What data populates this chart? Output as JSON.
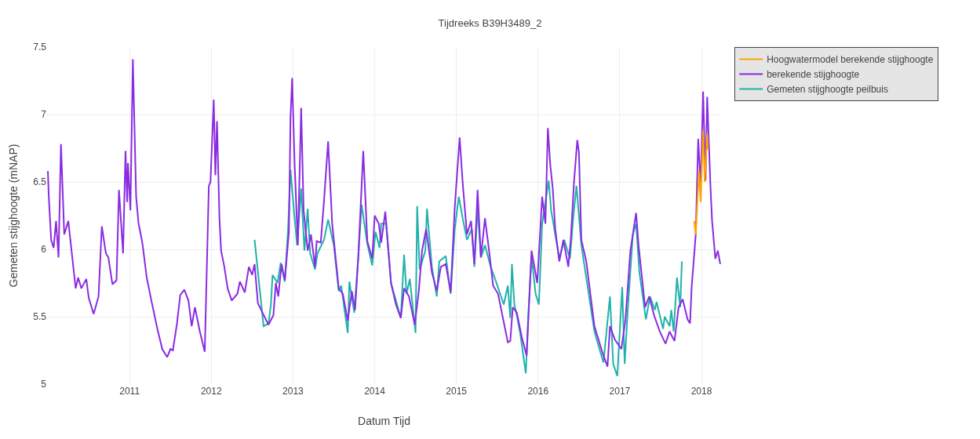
{
  "chart_data": {
    "type": "line",
    "title": "Tijdreeks B39H3489_2",
    "xlabel": "Datum Tijd",
    "ylabel": "Gemeten stijghoogte (mNAP)",
    "xlim": [
      2009.99,
      2018.24
    ],
    "xticks": [
      2011,
      2012,
      2013,
      2014,
      2015,
      2016,
      2017,
      2018
    ],
    "ylim": [
      5,
      7.5
    ],
    "yticks": [
      5,
      5.5,
      6,
      6.5,
      7,
      7.5
    ],
    "grid": true,
    "legend": "top right",
    "marker": "none",
    "line_style": "solid",
    "series": [
      {
        "name": "Hoogwatermodel berekende stijghoogte",
        "color": "#ffa500",
        "x": [
          2017.91,
          2017.93,
          2017.97,
          2017.99,
          2018.02,
          2018.04,
          2018.07,
          2018.08
        ],
        "values": [
          6.21,
          6.11,
          6.58,
          6.35,
          6.88,
          6.5,
          6.86,
          6.74
        ]
      },
      {
        "name": "berekende stijghoogte",
        "color": "#8a2be2",
        "x": [
          2010.0,
          2010.01,
          2010.04,
          2010.07,
          2010.1,
          2010.13,
          2010.16,
          2010.2,
          2010.25,
          2010.34,
          2010.37,
          2010.41,
          2010.47,
          2010.5,
          2010.56,
          2010.62,
          2010.66,
          2010.71,
          2010.74,
          2010.79,
          2010.84,
          2010.87,
          2010.92,
          2010.95,
          2010.97,
          2010.98,
          2011.01,
          2011.04,
          2011.08,
          2011.11,
          2011.14,
          2011.16,
          2011.21,
          2011.27,
          2011.34,
          2011.4,
          2011.46,
          2011.5,
          2011.53,
          2011.58,
          2011.62,
          2011.67,
          2011.72,
          2011.76,
          2011.8,
          2011.86,
          2011.92,
          2011.97,
          2011.99,
          2012.03,
          2012.05,
          2012.07,
          2012.1,
          2012.12,
          2012.16,
          2012.2,
          2012.25,
          2012.32,
          2012.35,
          2012.41,
          2012.46,
          2012.5,
          2012.53,
          2012.57,
          2012.7,
          2012.76,
          2012.79,
          2012.82,
          2012.86,
          2012.9,
          2012.95,
          2012.97,
          2012.99,
          2013.02,
          2013.06,
          2013.1,
          2013.13,
          2013.18,
          2013.22,
          2013.27,
          2013.29,
          2013.34,
          2013.38,
          2013.43,
          2013.48,
          2013.56,
          2013.61,
          2013.67,
          2013.72,
          2013.76,
          2013.8,
          2013.86,
          2013.91,
          2013.97,
          2014.0,
          2014.05,
          2014.08,
          2014.13,
          2014.2,
          2014.26,
          2014.32,
          2014.36,
          2014.42,
          2014.49,
          2014.54,
          2014.58,
          2014.63,
          2014.7,
          2014.76,
          2014.81,
          2014.87,
          2014.93,
          2014.98,
          2015.04,
          2015.08,
          2015.13,
          2015.18,
          2015.22,
          2015.26,
          2015.3,
          2015.35,
          2015.4,
          2015.45,
          2015.51,
          2015.63,
          2015.66,
          2015.69,
          2015.74,
          2015.8,
          2015.86,
          2015.92,
          2015.99,
          2016.05,
          2016.09,
          2016.12,
          2016.15,
          2016.18,
          2016.21,
          2016.26,
          2016.31,
          2016.37,
          2016.4,
          2016.44,
          2016.48,
          2016.5,
          2016.53,
          2016.59,
          2016.69,
          2016.79,
          2016.85,
          2016.88,
          2016.94,
          2017.02,
          2017.07,
          2017.13,
          2017.2,
          2017.23,
          2017.31,
          2017.36,
          2017.42,
          2017.49,
          2017.56,
          2017.61,
          2017.67,
          2017.72,
          2017.77,
          2017.83,
          2017.86,
          2017.88,
          2017.93,
          2017.96,
          2017.99,
          2018.02,
          2018.05,
          2018.07,
          2018.11,
          2018.13,
          2018.17,
          2018.2,
          2018.23
        ],
        "values": [
          6.58,
          6.4,
          6.07,
          6.01,
          6.21,
          5.94,
          6.78,
          6.11,
          6.21,
          5.71,
          5.79,
          5.71,
          5.78,
          5.64,
          5.52,
          5.65,
          6.17,
          5.97,
          5.94,
          5.74,
          5.77,
          6.44,
          5.97,
          6.73,
          6.35,
          6.64,
          6.29,
          7.41,
          6.39,
          6.19,
          6.1,
          6.03,
          5.79,
          5.61,
          5.41,
          5.26,
          5.2,
          5.26,
          5.25,
          5.45,
          5.66,
          5.7,
          5.62,
          5.43,
          5.57,
          5.39,
          5.24,
          6.47,
          6.5,
          7.11,
          6.55,
          6.95,
          6.23,
          5.99,
          5.87,
          5.71,
          5.62,
          5.67,
          5.76,
          5.68,
          5.87,
          5.81,
          5.89,
          5.6,
          5.44,
          5.51,
          5.75,
          5.65,
          5.89,
          5.77,
          6.13,
          6.98,
          7.27,
          6.63,
          6.03,
          7.05,
          6.29,
          5.99,
          6.11,
          5.87,
          6.06,
          6.05,
          6.36,
          6.8,
          6.19,
          5.71,
          5.67,
          5.47,
          5.69,
          5.55,
          5.95,
          6.73,
          6.06,
          5.93,
          6.25,
          6.19,
          6.05,
          6.28,
          5.75,
          5.59,
          5.49,
          5.71,
          5.65,
          5.44,
          5.69,
          5.99,
          6.15,
          5.83,
          5.69,
          5.87,
          5.89,
          5.68,
          6.31,
          6.83,
          6.47,
          6.11,
          6.21,
          5.89,
          6.44,
          5.94,
          6.23,
          5.99,
          5.73,
          5.67,
          5.31,
          5.32,
          5.57,
          5.53,
          5.35,
          5.21,
          5.99,
          5.75,
          6.39,
          6.19,
          6.9,
          6.62,
          6.45,
          6.15,
          5.91,
          6.07,
          5.87,
          6.07,
          6.5,
          6.81,
          6.72,
          6.07,
          5.91,
          5.43,
          5.23,
          5.13,
          5.43,
          5.33,
          5.26,
          5.48,
          5.99,
          6.27,
          6.03,
          5.57,
          5.65,
          5.51,
          5.39,
          5.3,
          5.39,
          5.32,
          5.57,
          5.63,
          5.48,
          5.45,
          5.72,
          6.11,
          6.82,
          6.47,
          7.17,
          6.51,
          7.13,
          6.47,
          6.21,
          5.93,
          5.99,
          5.89
        ]
      },
      {
        "name": "Gemeten stijghoogte peilbuis",
        "color": "#20b2aa",
        "x": [
          2012.53,
          2012.64,
          2012.7,
          2012.73,
          2012.75,
          2012.81,
          2012.85,
          2012.9,
          2012.94,
          2012.97,
          2012.99,
          2013.05,
          2013.1,
          2013.14,
          2013.18,
          2013.21,
          2013.27,
          2013.3,
          2013.38,
          2013.43,
          2013.5,
          2013.56,
          2013.59,
          2013.67,
          2013.69,
          2013.75,
          2013.8,
          2013.84,
          2013.91,
          2013.97,
          2014.01,
          2014.06,
          2014.08,
          2014.14,
          2014.2,
          2014.32,
          2014.36,
          2014.39,
          2014.43,
          2014.5,
          2014.52,
          2014.55,
          2014.62,
          2014.64,
          2014.7,
          2014.76,
          2014.79,
          2014.87,
          2014.93,
          2014.98,
          2015.03,
          2015.08,
          2015.13,
          2015.19,
          2015.22,
          2015.26,
          2015.3,
          2015.35,
          2015.42,
          2015.48,
          2015.58,
          2015.63,
          2015.66,
          2015.68,
          2015.71,
          2015.74,
          2015.78,
          2015.85,
          2015.88,
          2015.92,
          2015.97,
          2016.01,
          2016.05,
          2016.13,
          2016.16,
          2016.26,
          2016.32,
          2016.39,
          2016.43,
          2016.47,
          2016.53,
          2016.69,
          2016.8,
          2016.88,
          2016.92,
          2016.97,
          2017.03,
          2017.06,
          2017.1,
          2017.16,
          2017.2,
          2017.24,
          2017.32,
          2017.37,
          2017.43,
          2017.45,
          2017.53,
          2017.55,
          2017.61,
          2017.63,
          2017.66,
          2017.7,
          2017.74,
          2017.76
        ],
        "values": [
          6.07,
          5.43,
          5.45,
          5.59,
          5.81,
          5.75,
          5.9,
          5.76,
          6.15,
          6.59,
          6.44,
          6.03,
          6.45,
          5.99,
          6.3,
          5.97,
          5.85,
          5.97,
          6.07,
          6.22,
          6.03,
          5.69,
          5.73,
          5.38,
          5.76,
          5.53,
          5.95,
          6.33,
          6.04,
          5.88,
          6.13,
          6.01,
          6.19,
          6.19,
          5.75,
          5.49,
          5.96,
          5.67,
          5.78,
          5.38,
          6.32,
          5.85,
          5.99,
          6.3,
          5.87,
          5.65,
          5.91,
          5.95,
          5.67,
          6.15,
          6.39,
          6.22,
          6.07,
          6.15,
          5.87,
          6.31,
          5.94,
          6.03,
          5.87,
          5.77,
          5.59,
          5.73,
          5.49,
          5.89,
          5.59,
          5.51,
          5.38,
          5.08,
          5.51,
          5.95,
          5.67,
          5.59,
          6.19,
          6.51,
          6.29,
          5.93,
          6.07,
          5.93,
          6.23,
          6.47,
          6.03,
          5.39,
          5.16,
          5.65,
          5.15,
          5.06,
          5.72,
          5.15,
          5.57,
          6.11,
          6.19,
          5.83,
          5.48,
          5.65,
          5.55,
          5.61,
          5.41,
          5.5,
          5.43,
          5.55,
          5.39,
          5.79,
          5.57,
          5.91
        ]
      }
    ]
  }
}
